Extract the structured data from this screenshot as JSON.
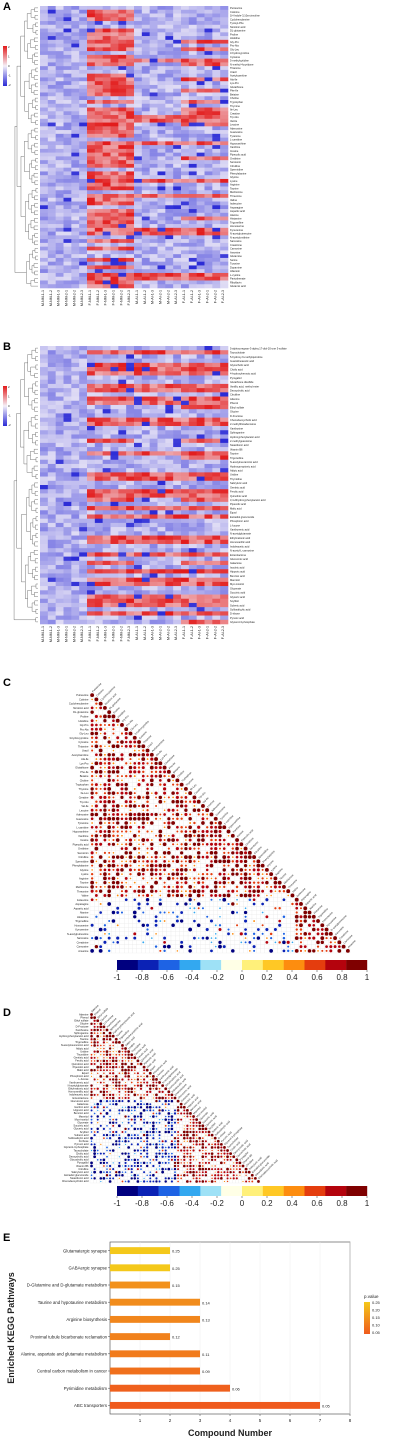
{
  "panels": [
    "A",
    "B",
    "C",
    "D",
    "E"
  ],
  "heatmap_colors": {
    "low": "#2b2bd6",
    "mid": "#f4f0f8",
    "high": "#e21b1b"
  },
  "heatmap_a": {
    "legend_ticks": [
      "2",
      "1",
      "0",
      "-1",
      "-2"
    ],
    "column_labels": [
      "M-NM-1-1",
      "M-NM-1-2",
      "M-NM-1-3",
      "M-NM-2-1",
      "M-NM-2-2",
      "M-NM-2-3",
      "F-NM-1-1",
      "F-NM-1-2",
      "F-NM-1-3",
      "F-NM-2-1",
      "F-NM-2-2",
      "F-NM-2-3",
      "M-AI-1-1",
      "M-AI-1-2",
      "M-AI-1-3",
      "M-AI-2-1",
      "M-AI-2-2",
      "M-AI-2-3",
      "F-AI-1-1",
      "F-AI-1-2",
      "F-AI-1-3",
      "F-AI-2-1",
      "F-AI-2-2",
      "F-AI-2-3"
    ],
    "row_labels": [
      "Putrescine",
      "Cotinine",
      "1H-Indole-3,10a-cinnoline",
      "Cyclohexylamine",
      "Tyrosyl-Phe",
      "Nicotinic acid",
      "DL-glutamine",
      "Proline",
      "Histidine",
      "Gly-Pro",
      "Pro-Ala",
      "Gly-Leu",
      "3-hydroxyproline",
      "Cytosine",
      "5-methylcytidine",
      "N-methyl-4-pyridone",
      "Thiamine",
      "Uracil",
      "Acetylcarnitine",
      "Ala-Ile",
      "Lys-Pro",
      "Glutathione",
      "Phe-Ile",
      "Betaine",
      "Choline",
      "Tryptophan",
      "Thymine",
      "Ile-Leu",
      "Creatine",
      "Trp-Glu",
      "Val-Ile",
      "Leucine",
      "Adenosine",
      "Guanosine",
      "Tyramine",
      "L-carnitine",
      "Hypoxanthine",
      "Xanthine",
      "Inosine",
      "Pipecolic acid",
      "Ornithine",
      "Serotonin",
      "Citrulline",
      "Spermidine",
      "Phenylalanine",
      "Glycine",
      "Lysine",
      "Arginine",
      "Taurine",
      "Methionine",
      "Threonine",
      "Valine",
      "Isoleucine",
      "Asparagine",
      "Aspartic acid",
      "Alanine",
      "Histamine",
      "Trigonelline",
      "Homoserine",
      "Kynurenine",
      "N-acetylputrescine",
      "N-acetylornithine",
      "Sarcosine",
      "Creatinine",
      "Carnosine",
      "Anserine",
      "Glutamine",
      "Serine",
      "Tyrosine",
      "Dopamine",
      "Allantoin",
      "L-cystine",
      "Pantothenate",
      "Riboflavin",
      "Glutamic acid"
    ],
    "groups": [
      {
        "start": 6,
        "end": 11,
        "high": 0.78
      },
      {
        "start": 12,
        "end": 17,
        "high": 0.18
      },
      {
        "start": 18,
        "end": 23,
        "high": 0.28
      }
    ]
  },
  "heatmap_b": {
    "legend_ticks": [
      "2",
      "1",
      "0",
      "-1",
      "-2"
    ],
    "column_labels": [
      "M-NM-1-1",
      "M-NM-1-2",
      "M-NM-1-3",
      "M-NM-2-1",
      "M-NM-2-2",
      "M-NM-2-3",
      "F-NM-1-1",
      "F-NM-1-2",
      "F-NM-1-3",
      "F-NM-2-1",
      "F-NM-2-2",
      "F-NM-2-3",
      "M-AI-1-1",
      "M-AI-1-2",
      "M-AI-1-3",
      "M-AI-2-1",
      "M-AI-2-2",
      "M-AI-2-3",
      "F-AI-1-1",
      "F-AI-1-2",
      "F-AI-1-3",
      "F-AI-2-1",
      "F-AI-2-2",
      "F-AI-2-3"
    ],
    "row_labels": [
      "5-alpha-pregnan-3-alpha,17-diol-20-one 3-sulfate",
      "Taurocholate",
      "5-hydroxy-6-methylquinoline",
      "Guanidinoacetic acid",
      "Glycocholic acid",
      "Cholic acid",
      "4-hydroxybenzoic acid",
      "Pyrogallol",
      "Glutathione disulfide",
      "Vanillic acid, methyl ester",
      "Deoxycholic acid",
      "Citrulline",
      "Adenine",
      "Phenol",
      "Ethyl sulfate",
      "Glycine",
      "D-Fructose",
      "Chenodeoxycholic acid",
      "2-methylthioadenosine",
      "Xanthosine",
      "Sphinganine",
      "Hydroxyphenylacetic acid",
      "2-methylguanosine",
      "Stearidonic acid",
      "Vitamin B6",
      "Taurine",
      "Trigonelline",
      "N-acetylneuraminic acid",
      "Hydroxypropionic acid",
      "Adipic acid",
      "Uridine",
      "Thymidine",
      "Salicyluric acid",
      "Gentisic acid",
      "Ferulic acid",
      "Quinolinic acid",
      "3,4-dihydroxyphenylacetic acid",
      "Pipecolic acid",
      "Malic acid",
      "Equol",
      "Estradiol glucuronide",
      "Phosphoric acid",
      "L-fucose",
      "Xanthurenic acid",
      "N-acetylglutamate",
      "Ethylmalonic acid",
      "Homovanillic acid",
      "Indoleacetic acid",
      "N-acetyl-L-carnosine",
      "Enterolactone",
      "Glucuronic acid",
      "Galactose",
      "Isocitric acid",
      "Hippuric acid",
      "Benzoic acid",
      "Mannitol",
      "Myo-inositol",
      "Glycerate",
      "Succinic acid",
      "Glyceric acid",
      "Scyllitol",
      "Suberic acid",
      "Sulfosalicylic acid",
      "D-ribose",
      "Pyruvic acid",
      "Glycerol-3-phosphate"
    ],
    "groups": [
      {
        "start": 6,
        "end": 11,
        "high": 0.48
      },
      {
        "start": 12,
        "end": 17,
        "high": 0.38
      },
      {
        "start": 18,
        "end": 23,
        "high": 0.55
      }
    ]
  },
  "corr_c": {
    "scale_ticks": [
      "-1",
      "-0.8",
      "-0.6",
      "-0.4",
      "-0.2",
      "0",
      "0.2",
      "0.4",
      "0.6",
      "0.8",
      "1"
    ],
    "scale_colors": [
      "#00007f",
      "#0b22b5",
      "#1e63e4",
      "#33a8f0",
      "#9ee1f6",
      "#ffffe6",
      "#fff07a",
      "#ffc825",
      "#fd8d0f",
      "#e43d0e",
      "#b4030d",
      "#7f0000"
    ],
    "labels": [
      "Putrescine",
      "Cotinine",
      "Cyclohexylamine",
      "Nicotinic acid",
      "DL-glutamine",
      "Proline",
      "Histidine",
      "Gly-Pro",
      "Pro-Ala",
      "Gly-Leu",
      "3-hydroxyproline",
      "Cytosine",
      "Thiamine",
      "Uracil",
      "Acetylcarnitine",
      "Ala-Ile",
      "Lys-Pro",
      "Glutathione",
      "Phe-Ile",
      "Betaine",
      "Choline",
      "Tryptophan",
      "Thymine",
      "Ile-Leu",
      "Creatine",
      "Trp-Glu",
      "Val-Ile",
      "Leucine",
      "Adenosine",
      "Guanosine",
      "Tyramine",
      "L-carnitine",
      "Hypoxanthine",
      "Xanthine",
      "Inosine",
      "Pipecolic acid",
      "Ornithine",
      "Serotonin",
      "Citrulline",
      "Spermidine",
      "Phenylalanine",
      "Glycine",
      "Lysine",
      "Arginine",
      "Taurine",
      "Methionine",
      "Threonine",
      "Valine",
      "Isoleucine",
      "Asparagine",
      "Aspartic acid",
      "Alanine",
      "Histamine",
      "Trigonelline",
      "Homoserine",
      "Kynurenine",
      "N-acetylputrescine",
      "Sarcosine",
      "Creatinine",
      "Carnosine",
      "Anserine"
    ]
  },
  "corr_d": {
    "scale_ticks": [
      "-1",
      "-0.8",
      "-0.6",
      "-0.4",
      "-0.2",
      "0",
      "0.2",
      "0.4",
      "0.6",
      "0.8",
      "1"
    ],
    "scale_colors": [
      "#00007f",
      "#0b22b5",
      "#1e63e4",
      "#33a8f0",
      "#9ee1f6",
      "#ffffe6",
      "#fff07a",
      "#ffc825",
      "#fd8d0f",
      "#e43d0e",
      "#b4030d",
      "#7f0000"
    ],
    "labels": [
      "Adenine",
      "Phenol",
      "Ethyl sulfate",
      "Glycine",
      "D-Fructose",
      "Xanthosine",
      "Sphinganine",
      "Hydroxyphenylacetic acid",
      "Taurine",
      "Trigonelline",
      "N-acetylneuraminic acid",
      "Adipic acid",
      "Uridine",
      "Thymidine",
      "Gentisic acid",
      "Ferulic acid",
      "Quinolinic acid",
      "Pipecolic acid",
      "Malic acid",
      "Equol",
      "Phosphoric acid",
      "L-fucose",
      "Xanthurenic acid",
      "N-acetylglutamate",
      "Ethylmalonic acid",
      "Homovanillic acid",
      "Indoleacetic acid",
      "Enterolactone",
      "Glucuronic acid",
      "Galactose",
      "Isocitric acid",
      "Hippuric acid",
      "Benzoic acid",
      "Mannitol",
      "Myo-inositol",
      "Glycerate",
      "Succinic acid",
      "Glyceric acid",
      "Scyllitol",
      "Suberic acid",
      "Sulfosalicylic acid",
      "D-ribose",
      "Pyruvic acid",
      "Glycerol-3-phosphate",
      "Taurocholate",
      "Cholic acid",
      "Deoxycholic acid",
      "Glycocholic acid",
      "Pyrogallol",
      "Vitamin B6",
      "Citrulline",
      "Salicyluric acid",
      "Estradiol glucuronide",
      "Stearidonic acid",
      "Chenodeoxycholic acid"
    ]
  },
  "chart_data": {
    "type": "bar",
    "title": "",
    "ylabel": "Enriched KEGG Pathways",
    "xlabel": "Compound Number",
    "xlim": [
      0,
      8
    ],
    "x_ticks": [
      "1",
      "2",
      "3",
      "4",
      "5",
      "6",
      "7",
      "8"
    ],
    "categories": [
      "Glutamatergic synapse",
      "GABAergic synapse",
      "D-Glutamine and D-glutamate metabolism",
      "Taurine and hypotaurine metabolism",
      "Arginine biosynthesis",
      "Proximal tubule bicarbonate reclamation",
      "Alanine, aspartate and glutamate metabolism",
      "Central carbon metabolism in cancer",
      "Pyrimidine metabolism",
      "ABC transporters"
    ],
    "values": [
      2,
      2,
      2,
      3,
      3,
      2,
      3,
      3,
      4,
      7
    ],
    "data_labels": [
      "0.25",
      "0.25",
      "0.15",
      "0.14",
      "0.13",
      "0.12",
      "0.11",
      "0.09",
      "0.06",
      "0.05"
    ],
    "pvalues": [
      0.25,
      0.25,
      0.15,
      0.14,
      0.13,
      0.12,
      0.11,
      0.09,
      0.06,
      0.05
    ],
    "legend": {
      "title": "p.value",
      "ticks": [
        "0.25",
        "0.20",
        "0.15",
        "0.10",
        "0.05"
      ],
      "low_color": "#ef5a1d",
      "high_color": "#f4c81a"
    }
  }
}
